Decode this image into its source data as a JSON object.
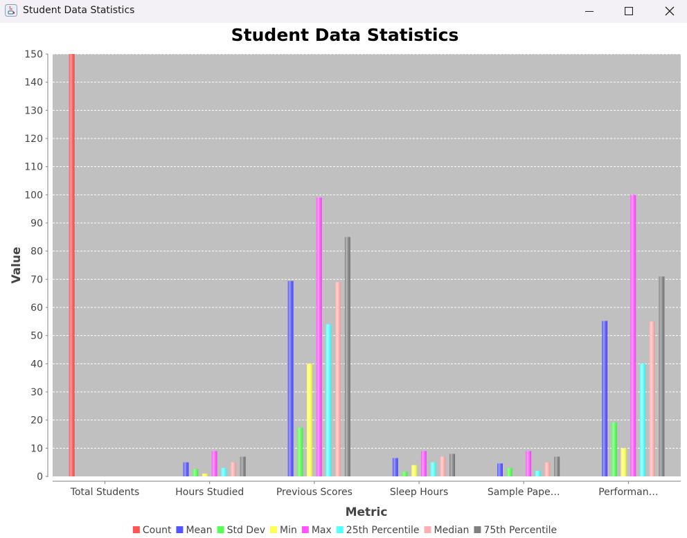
{
  "window": {
    "title": "Student Data Statistics"
  },
  "chart_data": {
    "type": "bar",
    "title": "Student Data Statistics",
    "xlabel": "Metric",
    "ylabel": "Value",
    "ylim": [
      0,
      150
    ],
    "yticks": [
      0,
      10,
      20,
      30,
      40,
      50,
      60,
      70,
      80,
      90,
      100,
      110,
      120,
      130,
      140,
      150
    ],
    "grid": true,
    "legend_position": "bottom",
    "categories": [
      "Total Students",
      "Hours Studied",
      "Previous Scores",
      "Sleep Hours",
      "Sample Pape…",
      "Performan…"
    ],
    "series": [
      {
        "name": "Count",
        "color": "#ff5555",
        "values": [
          150,
          null,
          null,
          null,
          null,
          null
        ]
      },
      {
        "name": "Mean",
        "color": "#5555ff",
        "values": [
          null,
          5,
          69.4,
          6.5,
          4.6,
          55.2
        ]
      },
      {
        "name": "Std Dev",
        "color": "#55ff55",
        "values": [
          null,
          2.6,
          17.3,
          1.7,
          2.9,
          19.2
        ]
      },
      {
        "name": "Min",
        "color": "#ffff55",
        "values": [
          null,
          1,
          40,
          4,
          0,
          10
        ]
      },
      {
        "name": "Max",
        "color": "#ff55ff",
        "values": [
          null,
          9,
          99,
          9,
          9,
          100
        ]
      },
      {
        "name": "25th Percentile",
        "color": "#55ffff",
        "values": [
          null,
          3,
          54,
          5,
          2,
          40
        ]
      },
      {
        "name": "Median",
        "color": "#ffafaf",
        "values": [
          null,
          5,
          69,
          7,
          5,
          55
        ]
      },
      {
        "name": "75th Percentile",
        "color": "#808080",
        "values": [
          null,
          7,
          85,
          8,
          7,
          71
        ]
      }
    ]
  }
}
